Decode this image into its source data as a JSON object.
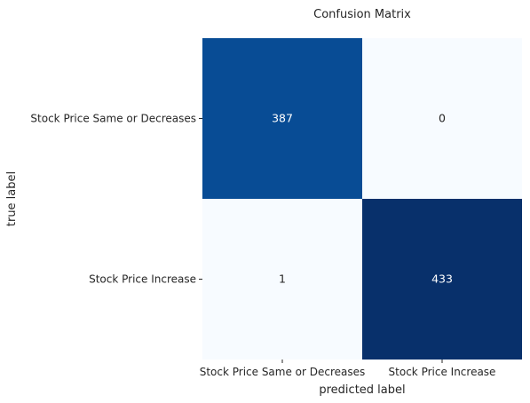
{
  "chart_data": {
    "type": "heatmap",
    "title": "Confusion Matrix",
    "xlabel": "predicted label",
    "ylabel": "true label",
    "row_labels": [
      "Stock Price Same or Decreases",
      "Stock Price Increase"
    ],
    "col_labels": [
      "Stock Price Same or Decreases",
      "Stock Price Increase"
    ],
    "values": [
      [
        387,
        0
      ],
      [
        1,
        433
      ]
    ],
    "colormap": "Blues",
    "color_low": "#f7fbff",
    "color_high": "#08306b",
    "text_dark": "#262626",
    "text_light": "#ffffff",
    "colorbar": false,
    "grid": false
  }
}
